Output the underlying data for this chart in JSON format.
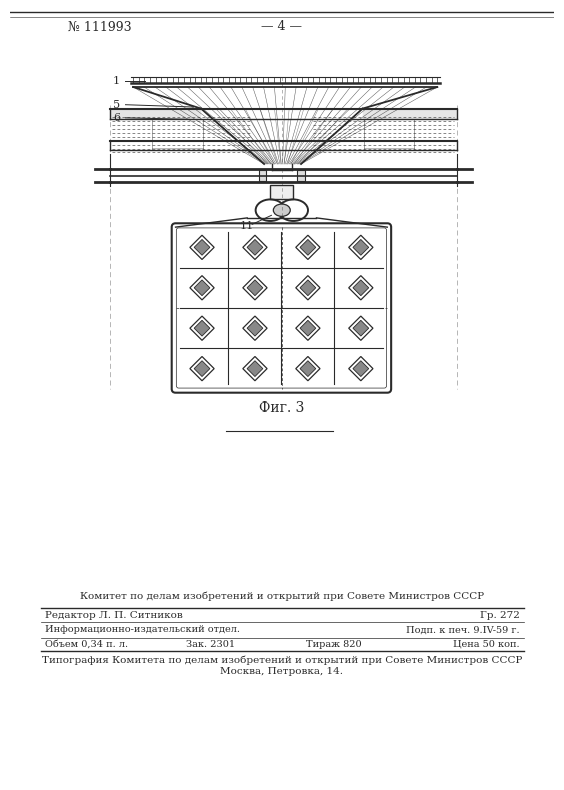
{
  "page_number": "№ 111993",
  "page_num_center": "— 4 —",
  "fig_label": "Фиг. 3",
  "footer_line1": "Комитет по делам изобретений и открытий при Совете Министров СССР",
  "footer_line2": "Редактор Л. П. Ситников",
  "footer_line2_right": "Гр. 272",
  "footer_line3": "Информационно-издательский отдел.",
  "footer_line3_right": "Подп. к печ. 9.IV-59 г.",
  "footer_line4_left": "Объем 0,34 п. л.",
  "footer_line4_mid": "Зак. 2301",
  "footer_line4_mid2": "Тираж 820",
  "footer_line4_right": "Цена 50 коп.",
  "footer_line5": "Типография Комитета по делам изобретений и открытий при Совете Министров СССР",
  "footer_line6": "Москва, Петровка, 14.",
  "bg_color": "#ffffff",
  "line_color": "#2a2a2a",
  "label1": "1",
  "label5": "5",
  "label6": "6",
  "label11": "11"
}
